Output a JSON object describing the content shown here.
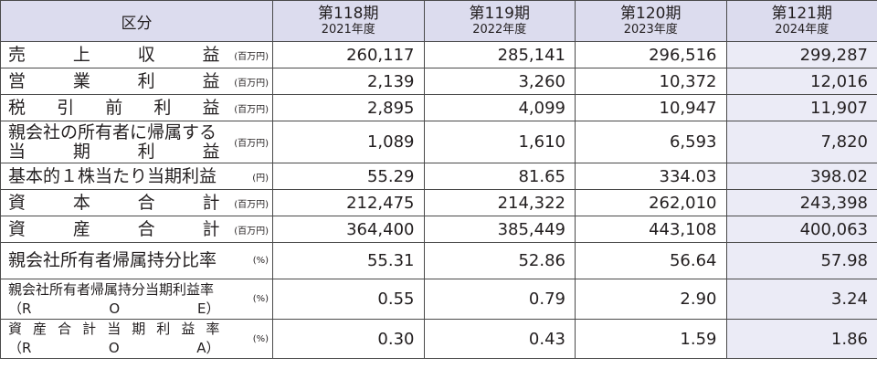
{
  "header": {
    "category": "区分",
    "periods": [
      {
        "period": "第118期",
        "year": "2021年度"
      },
      {
        "period": "第119期",
        "year": "2022年度"
      },
      {
        "period": "第120期",
        "year": "2023年度"
      },
      {
        "period": "第121期",
        "year": "2024年度"
      }
    ]
  },
  "rows": [
    {
      "label": [
        "売",
        "上",
        "収",
        "益"
      ],
      "unit": "(百万円)",
      "values": [
        "260,117",
        "285,141",
        "296,516",
        "299,287"
      ]
    },
    {
      "label": [
        "営",
        "業",
        "利",
        "益"
      ],
      "unit": "(百万円)",
      "values": [
        "2,139",
        "3,260",
        "10,372",
        "12,016"
      ]
    },
    {
      "label": [
        "税",
        "引",
        "前",
        "利",
        "益"
      ],
      "unit": "(百万円)",
      "values": [
        "2,895",
        "4,099",
        "10,947",
        "11,907"
      ]
    },
    {
      "label_line1": "親会社の所有者に帰属する",
      "label_line2": [
        "当",
        "期",
        "利",
        "益"
      ],
      "unit": "(百万円)",
      "values": [
        "1,089",
        "1,610",
        "6,593",
        "7,820"
      ]
    },
    {
      "label_text": "基本的１株当たり当期利益",
      "unit": "(円)",
      "values": [
        "55.29",
        "81.65",
        "334.03",
        "398.02"
      ]
    },
    {
      "label": [
        "資",
        "本",
        "合",
        "計"
      ],
      "unit": "(百万円)",
      "values": [
        "212,475",
        "214,322",
        "262,010",
        "243,398"
      ]
    },
    {
      "label": [
        "資",
        "産",
        "合",
        "計"
      ],
      "unit": "(百万円)",
      "values": [
        "364,400",
        "385,449",
        "443,108",
        "400,063"
      ]
    },
    {
      "label_text": "親会社所有者帰属持分比率",
      "unit": "(%)",
      "values": [
        "55.31",
        "52.86",
        "56.64",
        "57.98"
      ]
    },
    {
      "label_line1": "親会社所有者帰属持分当期利益率",
      "label_line2": [
        "（R",
        "O",
        "E）"
      ],
      "unit": "(%)",
      "values": [
        "0.55",
        "0.79",
        "2.90",
        "3.24"
      ]
    },
    {
      "label_line1": [
        "資",
        "産",
        "合",
        "計",
        "当",
        "期",
        "利",
        "益",
        "率"
      ],
      "label_line2": [
        "（R",
        "O",
        "A）"
      ],
      "unit": "(%)",
      "values": [
        "0.30",
        "0.43",
        "1.59",
        "1.86"
      ]
    }
  ]
}
